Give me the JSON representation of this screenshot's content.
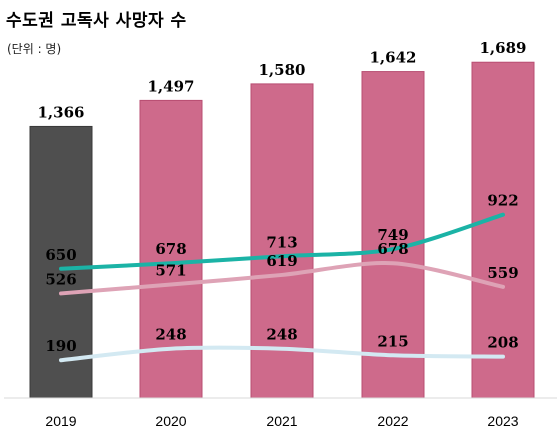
{
  "title": "수도권 고독사 사망자 수",
  "unit": "(단위 : 명)",
  "chart_data": {
    "type": "bar",
    "categories": [
      "2019",
      "2020",
      "2021",
      "2022",
      "2023"
    ],
    "bars": {
      "values": [
        1366,
        1497,
        1580,
        1642,
        1689
      ],
      "labels": [
        "1,366",
        "1,497",
        "1,580",
        "1,642",
        "1,689"
      ],
      "colors": [
        "#4f4f4f",
        "#ce6a8b",
        "#ce6a8b",
        "#ce6a8b",
        "#ce6a8b"
      ]
    },
    "lines": [
      {
        "values": [
          650,
          678,
          713,
          749,
          922
        ],
        "color": "#1bb3a6"
      },
      {
        "values": [
          526,
          571,
          619,
          678,
          559
        ],
        "color": "#dea3b6"
      },
      {
        "values": [
          190,
          248,
          248,
          215,
          208
        ],
        "color": "#d3e9f2"
      }
    ],
    "ylim": [
      0,
      1900
    ],
    "grid": false,
    "legend": "none"
  }
}
